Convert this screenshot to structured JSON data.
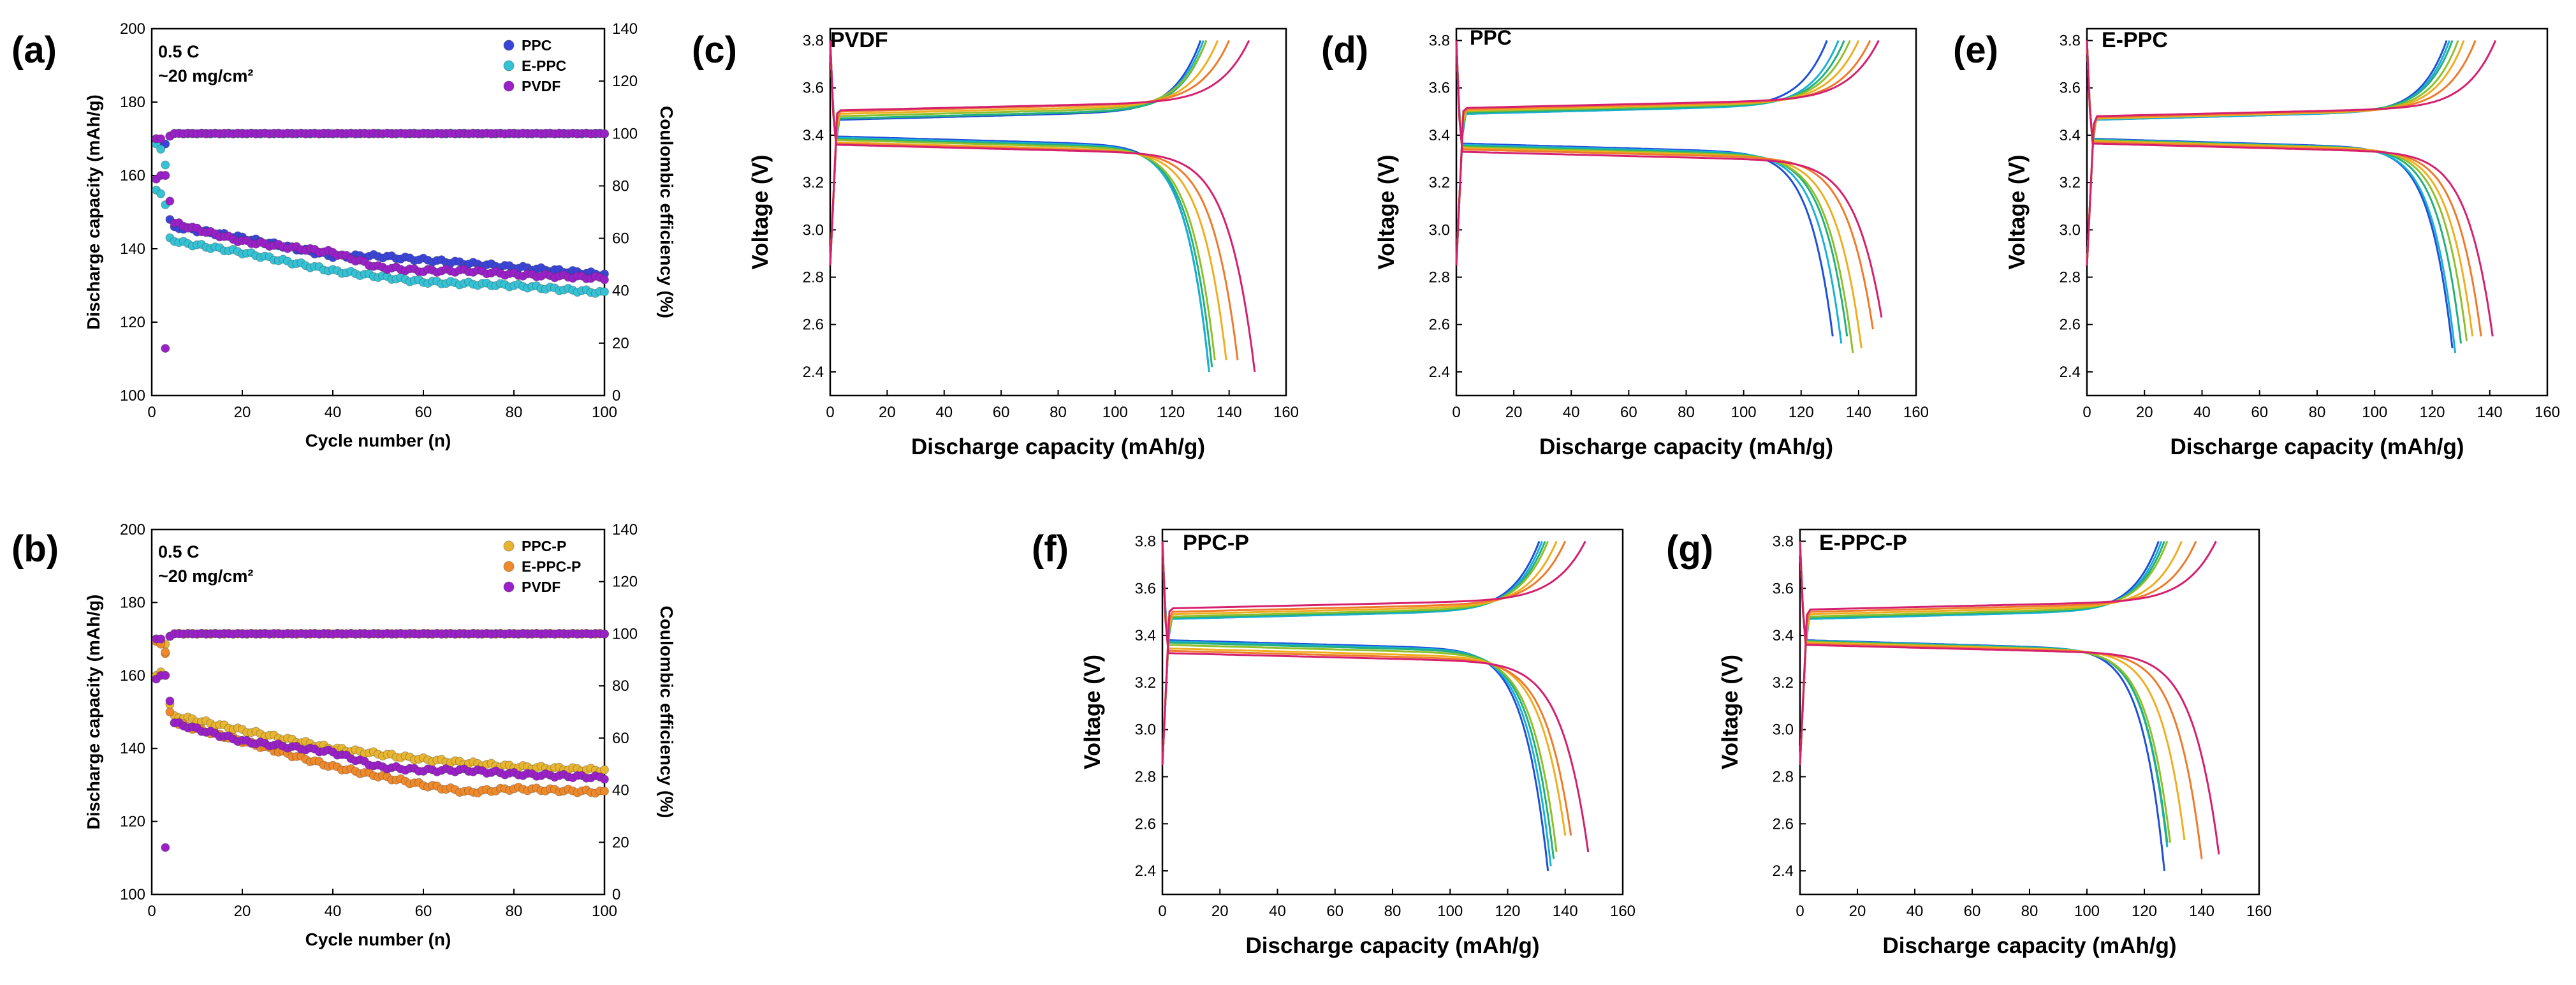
{
  "figure": {
    "panels": [
      {
        "letter": "(a)",
        "inline_label": "",
        "note1": "0.5 C",
        "note2": "~20 mg/cm²"
      },
      {
        "letter": "(b)",
        "inline_label": "",
        "note1": "0.5 C",
        "note2": "~20 mg/cm²"
      },
      {
        "letter": "(c)",
        "inline_label": "PVDF"
      },
      {
        "letter": "(d)",
        "inline_label": "PPC"
      },
      {
        "letter": "(e)",
        "inline_label": "E-PPC"
      },
      {
        "letter": "(f)",
        "inline_label": "PPC-P"
      },
      {
        "letter": "(g)",
        "inline_label": "E-PPC-P"
      }
    ]
  },
  "colors": {
    "PPC": "#3a45d8",
    "E-PPC": "#35c2d4",
    "PVDF": "#9a20c8",
    "PPC-P": "#e8b531",
    "E-PPC-P": "#ef8a2c",
    "curve_palette": [
      "#1f4fd6",
      "#19b0d8",
      "#23b07b",
      "#8fbf2a",
      "#efae1f",
      "#ee7a2c",
      "#d4206e"
    ]
  },
  "chart_data": [
    {
      "id": "a",
      "type": "scatter",
      "xlabel": "Cycle number (n)",
      "ylabel": "Discharge capacity (mAh/g)",
      "y2label": "Coulombic efficiency (%)",
      "xlim": [
        0,
        100
      ],
      "ylim": [
        100,
        200
      ],
      "y2lim": [
        0,
        140
      ],
      "xticks": [
        0,
        20,
        40,
        60,
        80,
        100
      ],
      "yticks": [
        100,
        120,
        140,
        160,
        180,
        200
      ],
      "y2ticks": [
        0,
        20,
        40,
        60,
        80,
        100,
        120,
        140
      ],
      "legend_position": "top-right",
      "series": [
        {
          "name": "PPC",
          "color_key": "PPC",
          "early": [
            [
              1,
              170
            ],
            [
              2,
              169
            ],
            [
              3,
              160
            ],
            [
              4,
              148
            ],
            [
              5,
              146
            ]
          ],
          "knots": [
            [
              5,
              146
            ],
            [
              20,
              143
            ],
            [
              40,
              138
            ],
            [
              50,
              138
            ],
            [
              60,
              137
            ],
            [
              80,
              135
            ],
            [
              100,
              133
            ]
          ],
          "ce": [
            [
              1,
              98
            ],
            [
              2,
              97
            ],
            [
              3,
              96
            ],
            [
              4,
              99
            ],
            [
              5,
              100
            ],
            [
              100,
              100
            ]
          ]
        },
        {
          "name": "E-PPC",
          "color_key": "E-PPC",
          "early": [
            [
              1,
              156
            ],
            [
              2,
              155
            ],
            [
              3,
              152
            ],
            [
              4,
              143
            ],
            [
              5,
              142
            ]
          ],
          "knots": [
            [
              5,
              142
            ],
            [
              20,
              139
            ],
            [
              40,
              134
            ],
            [
              60,
              131
            ],
            [
              80,
              130
            ],
            [
              100,
              128
            ]
          ],
          "ce": [
            [
              1,
              96
            ],
            [
              2,
              94
            ],
            [
              3,
              88
            ],
            [
              4,
              99
            ],
            [
              5,
              100
            ],
            [
              100,
              100
            ]
          ]
        },
        {
          "name": "PVDF",
          "color_key": "PVDF",
          "early": [
            [
              1,
              159
            ],
            [
              2,
              160
            ],
            [
              3,
              160
            ],
            [
              4,
              153
            ],
            [
              5,
              147
            ]
          ],
          "knots": [
            [
              5,
              147
            ],
            [
              20,
              142
            ],
            [
              40,
              139
            ],
            [
              50,
              135
            ],
            [
              60,
              134
            ],
            [
              70,
              134
            ],
            [
              80,
              133
            ],
            [
              100,
              132
            ]
          ],
          "ce": [
            [
              1,
              98
            ],
            [
              2,
              98
            ],
            [
              3,
              18
            ],
            [
              4,
              99
            ],
            [
              5,
              100
            ],
            [
              100,
              100
            ]
          ]
        }
      ]
    },
    {
      "id": "b",
      "type": "scatter",
      "xlabel": "Cycle number (n)",
      "ylabel": "Discharge capacity (mAh/g)",
      "y2label": "Coulombic efficiency (%)",
      "xlim": [
        0,
        100
      ],
      "ylim": [
        100,
        200
      ],
      "y2lim": [
        0,
        140
      ],
      "xticks": [
        0,
        20,
        40,
        60,
        80,
        100
      ],
      "yticks": [
        100,
        120,
        140,
        160,
        180,
        200
      ],
      "y2ticks": [
        0,
        20,
        40,
        60,
        80,
        100,
        120,
        140
      ],
      "legend_position": "top-right",
      "series": [
        {
          "name": "PPC-P",
          "color_key": "PPC-P",
          "early": [
            [
              1,
              160
            ],
            [
              2,
              161
            ],
            [
              3,
              160
            ],
            [
              4,
              152
            ],
            [
              5,
              149
            ]
          ],
          "knots": [
            [
              5,
              149
            ],
            [
              20,
              145
            ],
            [
              40,
              140
            ],
            [
              60,
              137
            ],
            [
              80,
              135
            ],
            [
              100,
              134
            ]
          ],
          "ce": [
            [
              1,
              98
            ],
            [
              2,
              98
            ],
            [
              3,
              96
            ],
            [
              4,
              99
            ],
            [
              5,
              100
            ],
            [
              100,
              100
            ]
          ]
        },
        {
          "name": "E-PPC-P",
          "color_key": "E-PPC-P",
          "early": [
            [
              1,
              170
            ],
            [
              2,
              169
            ],
            [
              3,
              166
            ],
            [
              4,
              150
            ],
            [
              5,
              147
            ]
          ],
          "knots": [
            [
              5,
              147
            ],
            [
              20,
              142
            ],
            [
              40,
              135
            ],
            [
              60,
              130
            ],
            [
              70,
              128
            ],
            [
              80,
              129
            ],
            [
              100,
              128
            ]
          ],
          "ce": [
            [
              1,
              97
            ],
            [
              2,
              96
            ],
            [
              3,
              93
            ],
            [
              4,
              99
            ],
            [
              5,
              100
            ],
            [
              100,
              100
            ]
          ]
        },
        {
          "name": "PVDF",
          "color_key": "PVDF",
          "early": [
            [
              1,
              159
            ],
            [
              2,
              160
            ],
            [
              3,
              160
            ],
            [
              4,
              153
            ],
            [
              5,
              147
            ]
          ],
          "knots": [
            [
              5,
              147
            ],
            [
              20,
              142
            ],
            [
              40,
              139
            ],
            [
              50,
              135
            ],
            [
              60,
              134
            ],
            [
              70,
              134
            ],
            [
              80,
              133
            ],
            [
              100,
              132
            ]
          ],
          "ce": [
            [
              1,
              98
            ],
            [
              2,
              98
            ],
            [
              3,
              18
            ],
            [
              4,
              99
            ],
            [
              5,
              100
            ],
            [
              100,
              100
            ]
          ]
        }
      ]
    },
    {
      "id": "c",
      "type": "line",
      "xlabel": "Discharge capacity (mAh/g)",
      "ylabel": "Voltage (V)",
      "xlim": [
        0,
        160
      ],
      "ylim": [
        2.3,
        3.85
      ],
      "xticks": [
        0,
        20,
        40,
        60,
        80,
        100,
        120,
        140,
        160
      ],
      "yticks": [
        2.4,
        2.6,
        2.8,
        3.0,
        3.2,
        3.4,
        3.6,
        3.8
      ],
      "curves": [
        {
          "cap": 133,
          "cap_ch": 130,
          "vc": 3.485,
          "vd": 3.385,
          "vend": 2.4
        },
        {
          "cap": 133,
          "cap_ch": 131,
          "vc": 3.49,
          "vd": 3.38,
          "vend": 2.4
        },
        {
          "cap": 134,
          "cap_ch": 132,
          "vc": 3.49,
          "vd": 3.375,
          "vend": 2.42
        },
        {
          "cap": 135,
          "cap_ch": 132,
          "vc": 3.5,
          "vd": 3.37,
          "vend": 2.45
        },
        {
          "cap": 139,
          "cap_ch": 136,
          "vc": 3.51,
          "vd": 3.36,
          "vend": 2.45
        },
        {
          "cap": 143,
          "cap_ch": 140,
          "vc": 3.52,
          "vd": 3.355,
          "vend": 2.45
        },
        {
          "cap": 149,
          "cap_ch": 147,
          "vc": 3.525,
          "vd": 3.35,
          "vend": 2.4
        }
      ]
    },
    {
      "id": "d",
      "type": "line",
      "xlabel": "Discharge capacity (mAh/g)",
      "ylabel": "Voltage (V)",
      "xlim": [
        0,
        160
      ],
      "ylim": [
        2.3,
        3.85
      ],
      "xticks": [
        0,
        20,
        40,
        60,
        80,
        100,
        120,
        140,
        160
      ],
      "yticks": [
        2.4,
        2.6,
        2.8,
        3.0,
        3.2,
        3.4,
        3.6,
        3.8
      ],
      "curves": [
        {
          "cap": 131,
          "cap_ch": 129,
          "vc": 3.51,
          "vd": 3.355,
          "vend": 2.55
        },
        {
          "cap": 134,
          "cap_ch": 133,
          "vc": 3.51,
          "vd": 3.35,
          "vend": 2.52
        },
        {
          "cap": 136,
          "cap_ch": 135,
          "vc": 3.515,
          "vd": 3.345,
          "vend": 2.55
        },
        {
          "cap": 138,
          "cap_ch": 137,
          "vc": 3.52,
          "vd": 3.34,
          "vend": 2.48
        },
        {
          "cap": 141,
          "cap_ch": 140,
          "vc": 3.525,
          "vd": 3.335,
          "vend": 2.5
        },
        {
          "cap": 145,
          "cap_ch": 144,
          "vc": 3.53,
          "vd": 3.33,
          "vend": 2.58
        },
        {
          "cap": 148,
          "cap_ch": 147,
          "vc": 3.535,
          "vd": 3.32,
          "vend": 2.63
        }
      ]
    },
    {
      "id": "e",
      "type": "line",
      "xlabel": "Discharge capacity (mAh/g)",
      "ylabel": "Voltage (V)",
      "xlim": [
        0,
        160
      ],
      "ylim": [
        2.3,
        3.85
      ],
      "xticks": [
        0,
        20,
        40,
        60,
        80,
        100,
        120,
        140,
        160
      ],
      "yticks": [
        2.4,
        2.6,
        2.8,
        3.0,
        3.2,
        3.4,
        3.6,
        3.8
      ],
      "curves": [
        {
          "cap": 127,
          "cap_ch": 125,
          "vc": 3.485,
          "vd": 3.375,
          "vend": 2.5
        },
        {
          "cap": 128,
          "cap_ch": 126,
          "vc": 3.485,
          "vd": 3.372,
          "vend": 2.48
        },
        {
          "cap": 130,
          "cap_ch": 127,
          "vc": 3.49,
          "vd": 3.37,
          "vend": 2.52
        },
        {
          "cap": 132,
          "cap_ch": 129,
          "vc": 3.49,
          "vd": 3.368,
          "vend": 2.53
        },
        {
          "cap": 134,
          "cap_ch": 131,
          "vc": 3.49,
          "vd": 3.365,
          "vend": 2.55
        },
        {
          "cap": 137,
          "cap_ch": 135,
          "vc": 3.495,
          "vd": 3.36,
          "vend": 2.55
        },
        {
          "cap": 141,
          "cap_ch": 142,
          "vc": 3.5,
          "vd": 3.355,
          "vend": 2.55
        }
      ]
    },
    {
      "id": "f",
      "type": "line",
      "xlabel": "Discharge capacity (mAh/g)",
      "ylabel": "Voltage (V)",
      "xlim": [
        0,
        160
      ],
      "ylim": [
        2.3,
        3.85
      ],
      "xticks": [
        0,
        20,
        40,
        60,
        80,
        100,
        120,
        140,
        160
      ],
      "yticks": [
        2.4,
        2.6,
        2.8,
        3.0,
        3.2,
        3.4,
        3.6,
        3.8
      ],
      "curves": [
        {
          "cap": 134,
          "cap_ch": 131,
          "vc": 3.49,
          "vd": 3.37,
          "vend": 2.4
        },
        {
          "cap": 135,
          "cap_ch": 132,
          "vc": 3.49,
          "vd": 3.365,
          "vend": 2.42
        },
        {
          "cap": 136,
          "cap_ch": 133,
          "vc": 3.495,
          "vd": 3.36,
          "vend": 2.45
        },
        {
          "cap": 137,
          "cap_ch": 134,
          "vc": 3.5,
          "vd": 3.35,
          "vend": 2.48
        },
        {
          "cap": 140,
          "cap_ch": 137,
          "vc": 3.51,
          "vd": 3.335,
          "vend": 2.55
        },
        {
          "cap": 142,
          "cap_ch": 140,
          "vc": 3.52,
          "vd": 3.325,
          "vend": 2.55
        },
        {
          "cap": 148,
          "cap_ch": 147,
          "vc": 3.535,
          "vd": 3.315,
          "vend": 2.48
        }
      ]
    },
    {
      "id": "g",
      "type": "line",
      "xlabel": "Discharge capacity (mAh/g)",
      "ylabel": "Voltage (V)",
      "xlim": [
        0,
        160
      ],
      "ylim": [
        2.3,
        3.85
      ],
      "xticks": [
        0,
        20,
        40,
        60,
        80,
        100,
        120,
        140,
        160
      ],
      "yticks": [
        2.4,
        2.6,
        2.8,
        3.0,
        3.2,
        3.4,
        3.6,
        3.8
      ],
      "curves": [
        {
          "cap": 127,
          "cap_ch": 125,
          "vc": 3.49,
          "vd": 3.37,
          "vend": 2.4
        },
        {
          "cap": 128,
          "cap_ch": 126,
          "vc": 3.49,
          "vd": 3.368,
          "vend": 2.5
        },
        {
          "cap": 128,
          "cap_ch": 127,
          "vc": 3.495,
          "vd": 3.366,
          "vend": 2.52
        },
        {
          "cap": 129,
          "cap_ch": 128,
          "vc": 3.5,
          "vd": 3.363,
          "vend": 2.52
        },
        {
          "cap": 134,
          "cap_ch": 133,
          "vc": 3.51,
          "vd": 3.36,
          "vend": 2.53
        },
        {
          "cap": 140,
          "cap_ch": 138,
          "vc": 3.52,
          "vd": 3.355,
          "vend": 2.45
        },
        {
          "cap": 146,
          "cap_ch": 145,
          "vc": 3.53,
          "vd": 3.35,
          "vend": 2.47
        }
      ]
    }
  ]
}
